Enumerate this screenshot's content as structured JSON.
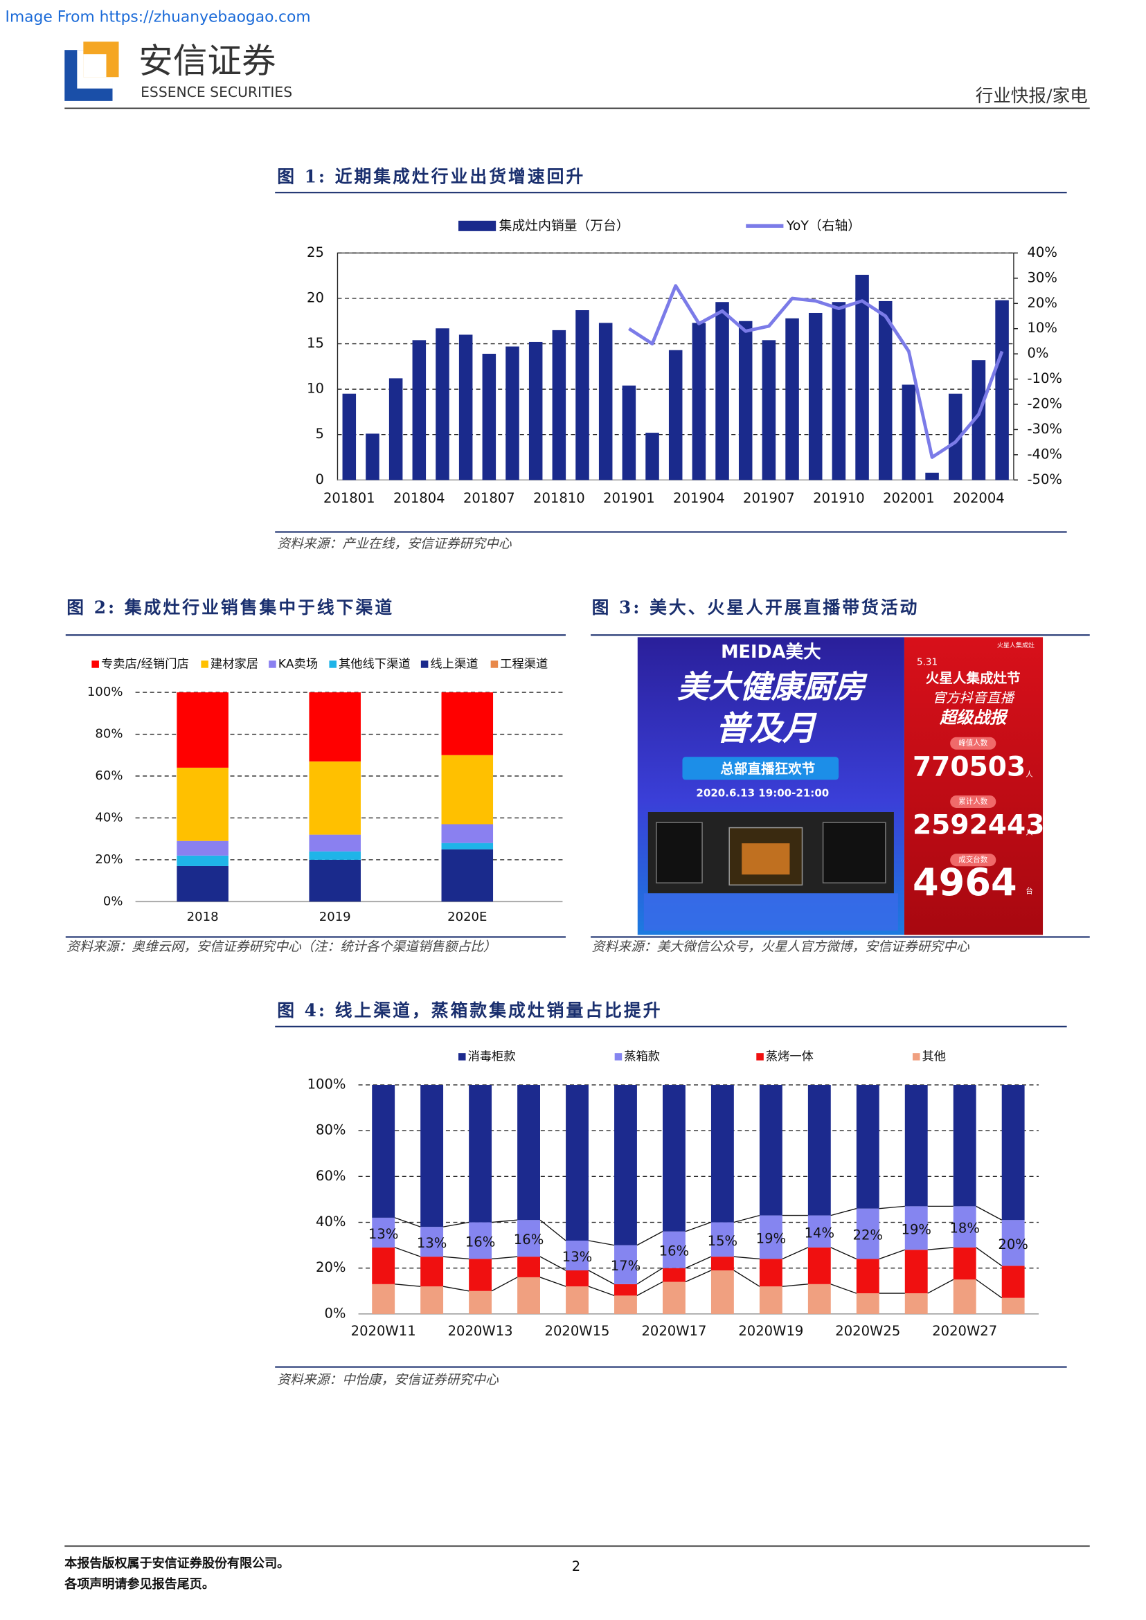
{
  "header": {
    "source_note": "Image From https://zhuanyebaogao.com",
    "brand": "安信证券",
    "brand_en": "ESSENCE SECURITIES",
    "section": "行业快报/家电"
  },
  "chart_data": [
    {
      "type": "bar",
      "title": "图 1: 近期集成灶行业出货增速回升",
      "source": "资料来源：产业在线，安信证券研究中心",
      "categories": [
        "201801",
        null,
        null,
        "201804",
        null,
        null,
        "201807",
        null,
        null,
        "201810",
        null,
        null,
        "201901",
        null,
        null,
        "201904",
        null,
        null,
        "201907",
        null,
        null,
        "201910",
        null,
        null,
        "202001",
        null,
        null,
        "202004",
        null
      ],
      "series": [
        {
          "name": "集成灶内销量（万台）",
          "color": "#1a2a8c",
          "values": [
            9.5,
            5.1,
            11.2,
            15.4,
            16.7,
            16.0,
            13.9,
            14.7,
            15.2,
            16.5,
            18.7,
            17.3,
            10.4,
            5.2,
            14.3,
            17.3,
            19.6,
            17.5,
            15.4,
            17.8,
            18.4,
            19.6,
            22.6,
            19.7,
            10.5,
            0.8,
            9.5,
            13.2,
            19.8
          ]
        },
        {
          "name": "YoY（右轴）",
          "color": "#7b7be8",
          "type": "line",
          "axis": "y2",
          "values": [
            null,
            null,
            null,
            null,
            null,
            null,
            null,
            null,
            null,
            null,
            null,
            null,
            10,
            4,
            27,
            12,
            17,
            9,
            11,
            22,
            21,
            18,
            21,
            15,
            1,
            -41,
            -35,
            -24,
            1
          ]
        }
      ],
      "ylim": [
        0,
        25
      ],
      "yticks": [
        0,
        5,
        10,
        15,
        20,
        25
      ],
      "y2lim": [
        -50,
        40
      ],
      "y2ticks": [
        {
          "value": 40,
          "label": "40%"
        },
        {
          "value": 30,
          "label": "30%"
        },
        {
          "value": 20,
          "label": "20%"
        },
        {
          "value": 10,
          "label": "10%"
        },
        {
          "value": 0,
          "label": "0%"
        },
        {
          "value": -10,
          "label": "-10%"
        },
        {
          "value": -20,
          "label": "-20%"
        },
        {
          "value": -30,
          "label": "-30%"
        },
        {
          "value": -40,
          "label": "-40%"
        },
        {
          "value": -50,
          "label": "-50%"
        }
      ],
      "grid": true
    },
    {
      "type": "bar",
      "stacked": true,
      "title": "图 2: 集成灶行业销售集中于线下渠道",
      "source": "资料来源：奥维云网，安信证券研究中心（注：统计各个渠道销售额占比）",
      "categories": [
        "2018",
        "2019",
        "2020E"
      ],
      "series": [
        {
          "name": "专卖店/经销门店",
          "color": "#ff0000",
          "values": [
            36,
            33,
            30
          ]
        },
        {
          "name": "建材家居",
          "color": "#ffc000",
          "values": [
            35,
            35,
            33
          ]
        },
        {
          "name": "KA卖场",
          "color": "#8a80f0",
          "values": [
            7,
            8,
            9
          ]
        },
        {
          "name": "其他线下渠道",
          "color": "#1fb4e8",
          "values": [
            5,
            4,
            3
          ]
        },
        {
          "name": "线上渠道",
          "color": "#1a2a8c",
          "values": [
            17,
            20,
            25
          ]
        },
        {
          "name": "工程渠道",
          "color": "#e8884a",
          "values": [
            0,
            0,
            0
          ]
        }
      ],
      "ylim": [
        0,
        100
      ],
      "yticks": [
        {
          "value": 0,
          "label": "0%"
        },
        {
          "value": 20,
          "label": "20%"
        },
        {
          "value": 40,
          "label": "40%"
        },
        {
          "value": 60,
          "label": "60%"
        },
        {
          "value": 80,
          "label": "80%"
        },
        {
          "value": 100,
          "label": "100%"
        }
      ],
      "grid": true
    },
    {
      "type": "bar",
      "stacked": true,
      "title": "图 4: 线上渠道，蒸箱款集成灶销量占比提升",
      "source": "资料来源：中怡康，安信证券研究中心",
      "categories": [
        "2020W11",
        null,
        "2020W13",
        null,
        "2020W15",
        null,
        "2020W17",
        null,
        "2020W19",
        null,
        "2020W25",
        null,
        "2020W27",
        null
      ],
      "series": [
        {
          "name": "消毒柜款",
          "color": "#1c2a8e",
          "values": [
            58,
            62,
            60,
            59,
            68,
            70,
            64,
            60,
            57,
            57,
            54,
            53,
            53,
            59
          ]
        },
        {
          "name": "蒸箱款",
          "color": "#8585f0",
          "values": [
            13,
            13,
            16,
            16,
            13,
            17,
            16,
            15,
            19,
            14,
            22,
            19,
            18,
            20
          ],
          "value_labels": [
            "13%",
            "13%",
            "16%",
            "16%",
            "13%",
            "17%",
            "16%",
            "15%",
            "19%",
            "14%",
            "22%",
            "19%",
            "18%",
            "20%"
          ]
        },
        {
          "name": "蒸烤一体",
          "color": "#f01010",
          "values": [
            16,
            13,
            14,
            9,
            7,
            5,
            6,
            6,
            12,
            16,
            15,
            19,
            14,
            14
          ]
        },
        {
          "name": "其他",
          "color": "#f0a080",
          "values": [
            13,
            12,
            10,
            16,
            12,
            8,
            14,
            19,
            12,
            13,
            9,
            9,
            15,
            7
          ]
        }
      ],
      "ylim": [
        0,
        100
      ],
      "yticks": [
        {
          "value": 0,
          "label": "0%"
        },
        {
          "value": 20,
          "label": "20%"
        },
        {
          "value": 40,
          "label": "40%"
        },
        {
          "value": 60,
          "label": "60%"
        },
        {
          "value": 80,
          "label": "80%"
        },
        {
          "value": 100,
          "label": "100%"
        }
      ],
      "grid": true
    }
  ],
  "figure3": {
    "title": "图 3: 美大、火星人开展直播带货活动",
    "source": "资料来源：美大微信公众号，火星人官方微博，安信证券研究中心",
    "left": {
      "brand": "MEIDA美大",
      "headline1": "美大健康厨房",
      "headline2": "普及月",
      "banner": "总部直播狂欢节",
      "time": "2020.6.13  19:00-21:00"
    },
    "right": {
      "corner": "火星人集成灶",
      "date": "5.31",
      "event": "火星人集成灶节",
      "line1": "官方抖音直播",
      "line2": "超级战报",
      "stats": [
        {
          "label": "峰值人数",
          "value": "770503",
          "unit": "人"
        },
        {
          "label": "累计人数",
          "value": "2592443",
          "unit": "人"
        },
        {
          "label": "成交台数",
          "value": "4964",
          "unit": "台"
        }
      ]
    }
  },
  "footer": {
    "line1": "本报告版权属于安信证券股份有限公司。",
    "line2": "各项声明请参见报告尾页。",
    "page": "2"
  }
}
